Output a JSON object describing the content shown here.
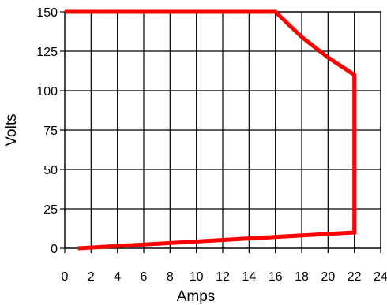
{
  "chart_data": {
    "type": "line",
    "title": "",
    "xlabel": "Amps",
    "ylabel": "Volts",
    "xlim": [
      0,
      24
    ],
    "ylim": [
      0,
      150
    ],
    "xticks": [
      0,
      2,
      4,
      6,
      8,
      10,
      12,
      14,
      16,
      18,
      20,
      22,
      24
    ],
    "yticks": [
      0,
      25,
      50,
      75,
      100,
      125,
      150
    ],
    "grid": true,
    "legend": "none",
    "series": [
      {
        "color": "#ff0000",
        "x": [
          1,
          22,
          22,
          20,
          18,
          16,
          0
        ],
        "y": [
          0,
          10,
          110,
          121,
          134,
          150,
          150
        ]
      }
    ]
  }
}
